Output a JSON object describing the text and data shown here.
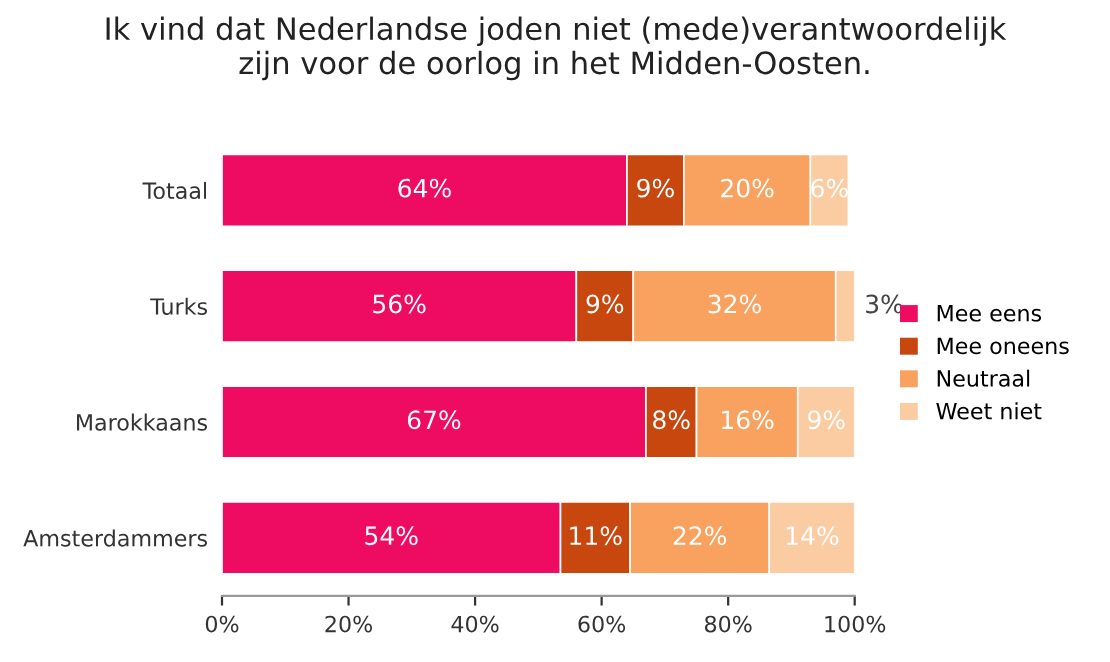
{
  "chart_data": {
    "type": "bar",
    "orientation": "horizontal",
    "stacked": true,
    "title": "Ik vind dat Nederlandse joden niet (mede)verantwoordelijk\nzijn voor de oorlog in het Midden-Oosten.",
    "categories": [
      "Totaal",
      "Turks",
      "Marokkaans",
      "Amsterdammers"
    ],
    "series": [
      {
        "name": "Mee eens",
        "color": "#ee0c62",
        "values": [
          64,
          56,
          67,
          53.5
        ],
        "value_labels": [
          "64%",
          "56%",
          "67%",
          "54%"
        ]
      },
      {
        "name": "Mee oneens",
        "color": "#c8470f",
        "values": [
          9,
          9,
          8,
          11
        ],
        "value_labels": [
          "9%",
          "9%",
          "8%",
          "11%"
        ]
      },
      {
        "name": "Neutraal",
        "color": "#f9a25f",
        "values": [
          20,
          32,
          16,
          22
        ],
        "value_labels": [
          "20%",
          "32%",
          "16%",
          "22%"
        ]
      },
      {
        "name": "Weet niet",
        "color": "#fbcca2",
        "values": [
          6,
          3,
          9,
          13.5
        ],
        "value_labels": [
          "6%",
          "3%",
          "9%",
          "14%"
        ]
      }
    ],
    "xlim": [
      0,
      100
    ],
    "xticks": [
      {
        "value": 0,
        "label": "0%"
      },
      {
        "value": 20,
        "label": "20%"
      },
      {
        "value": 40,
        "label": "40%"
      },
      {
        "value": 60,
        "label": "60%"
      },
      {
        "value": 80,
        "label": "80%"
      },
      {
        "value": 100,
        "label": "100%"
      }
    ],
    "grid": false,
    "legend": "right"
  }
}
